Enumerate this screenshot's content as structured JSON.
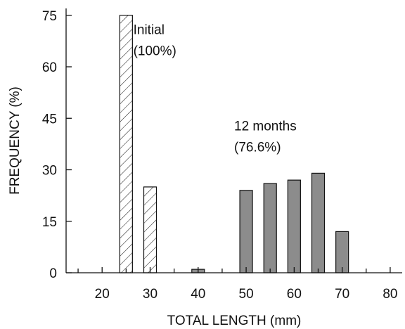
{
  "chart_data": {
    "type": "bar",
    "xlabel": "TOTAL LENGTH (mm)",
    "ylabel": "FREQUENCY (%)",
    "xlim": [
      12.5,
      82.5
    ],
    "ylim": [
      0,
      77
    ],
    "xticks": [
      20,
      30,
      40,
      50,
      60,
      70,
      80
    ],
    "yticks": [
      0,
      15,
      30,
      45,
      60,
      75
    ],
    "grid": false,
    "series": [
      {
        "hatch": "diagonal",
        "fill": "#ffffff",
        "x": [
          25,
          30
        ],
        "values": [
          75,
          25
        ]
      },
      {
        "hatch": "none",
        "fill": "#8c8c8c",
        "x": [
          40,
          50,
          55,
          60,
          65,
          70
        ],
        "values": [
          1,
          24,
          26,
          27,
          29,
          12
        ]
      }
    ],
    "annotations": [
      {
        "lines": [
          "Initial",
          "(100%)"
        ],
        "x": 26.5,
        "y": 69.5
      },
      {
        "lines": [
          "12 months",
          "(76.6%)"
        ],
        "x": 47.5,
        "y": 41.5
      }
    ]
  }
}
